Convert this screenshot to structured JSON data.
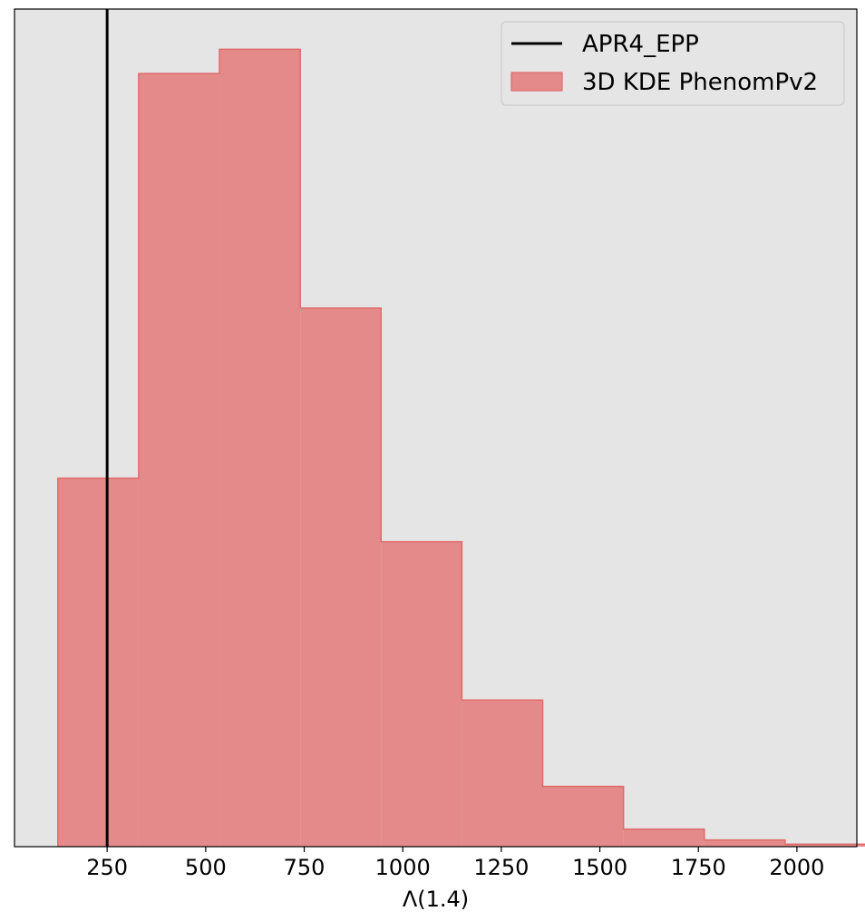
{
  "chart_data": {
    "type": "histogram",
    "xlabel": "Λ(1.4)",
    "ylabel": "",
    "xlim": [
      15,
      2152
    ],
    "ylim": [
      0,
      100
    ],
    "x_ticks": [
      250,
      500,
      750,
      1000,
      1250,
      1500,
      1750,
      2000
    ],
    "y_ticks_visible": false,
    "grid": false,
    "background_color": "#e5e5e5",
    "legend": {
      "placement": "top-right",
      "entries": [
        {
          "label": "APR4_EPP",
          "kind": "line",
          "color": "#000000"
        },
        {
          "label": "3D KDE PhenomPv2",
          "kind": "patch",
          "color": "#e48a8a"
        }
      ]
    },
    "vertical_line": {
      "name": "APR4_EPP",
      "x": 250,
      "color": "#000000"
    },
    "histogram": {
      "name": "3D KDE PhenomPv2",
      "fill_color": "#e48a8a",
      "edge_color": "#e06a6a",
      "bin_edges": [
        125,
        330,
        535,
        740,
        945,
        1150,
        1355,
        1560,
        1765,
        1970,
        2175
      ],
      "counts": [
        44.0,
        92.3,
        95.2,
        64.3,
        36.4,
        17.5,
        7.2,
        2.1,
        0.8,
        0.3
      ]
    }
  }
}
